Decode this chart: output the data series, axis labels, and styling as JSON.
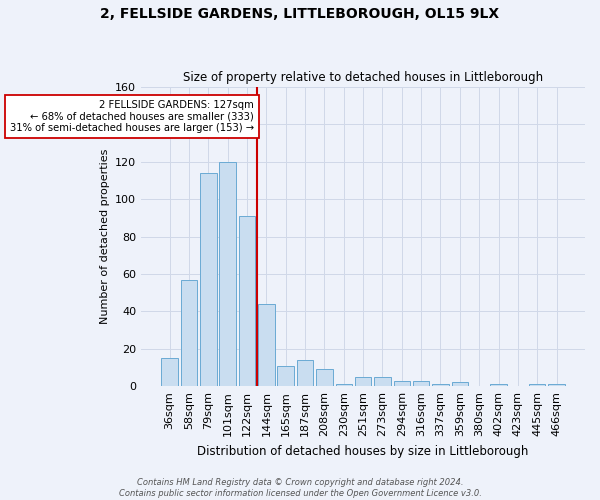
{
  "title": "2, FELLSIDE GARDENS, LITTLEBOROUGH, OL15 9LX",
  "subtitle": "Size of property relative to detached houses in Littleborough",
  "xlabel": "Distribution of detached houses by size in Littleborough",
  "ylabel": "Number of detached properties",
  "categories": [
    "36sqm",
    "58sqm",
    "79sqm",
    "101sqm",
    "122sqm",
    "144sqm",
    "165sqm",
    "187sqm",
    "208sqm",
    "230sqm",
    "251sqm",
    "273sqm",
    "294sqm",
    "316sqm",
    "337sqm",
    "359sqm",
    "380sqm",
    "402sqm",
    "423sqm",
    "445sqm",
    "466sqm"
  ],
  "values": [
    15,
    57,
    114,
    120,
    91,
    44,
    11,
    14,
    9,
    1,
    5,
    5,
    3,
    3,
    1,
    2,
    0,
    1,
    0,
    1,
    1
  ],
  "bar_color": "#c9ddf0",
  "bar_edge_color": "#6aaad4",
  "red_line_index": 4,
  "red_line_color": "#cc0000",
  "annotation_text": "2 FELLSIDE GARDENS: 127sqm\n← 68% of detached houses are smaller (333)\n31% of semi-detached houses are larger (153) →",
  "annotation_box_color": "#ffffff",
  "annotation_box_edge": "#cc0000",
  "ylim": [
    0,
    160
  ],
  "yticks": [
    0,
    20,
    40,
    60,
    80,
    100,
    120,
    140,
    160
  ],
  "grid_color": "#d0d8e8",
  "bg_color": "#eef2fa",
  "footer": "Contains HM Land Registry data © Crown copyright and database right 2024.\nContains public sector information licensed under the Open Government Licence v3.0."
}
